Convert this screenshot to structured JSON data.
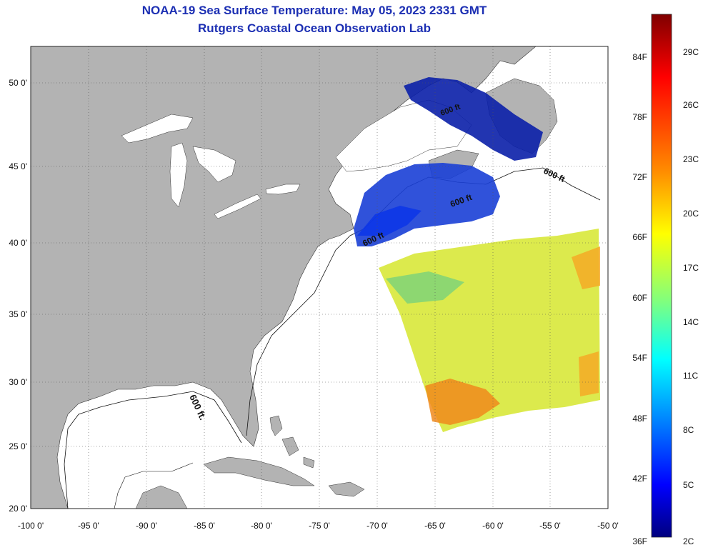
{
  "header": {
    "title": "NOAA-19 Sea Surface Temperature:  May 05, 2023 2331 GMT",
    "subtitle": "Rutgers Coastal Ocean Observation Lab"
  },
  "map": {
    "lat_labels": [
      "50 0'",
      "45 0'",
      "40 0'",
      "35 0'",
      "30 0'",
      "25 0'",
      "20 0'"
    ],
    "lat_values": [
      50,
      45,
      40,
      35,
      30,
      25,
      20
    ],
    "lon_labels": [
      "-100 0'",
      "-95 0'",
      "-90 0'",
      "-85 0'",
      "-80 0'",
      "-75 0'",
      "-70 0'",
      "-65 0'",
      "-60 0'",
      "-55 0'",
      "-50 0'"
    ],
    "lon_values": [
      -100,
      -95,
      -90,
      -85,
      -80,
      -75,
      -70,
      -65,
      -60,
      -55,
      -50
    ],
    "lat_range": [
      20,
      52.5
    ],
    "lon_range": [
      -100,
      -50
    ],
    "contour_label": "600 ft.",
    "contour_labels_upper": [
      "600 ft",
      "600 ft",
      "600 ft",
      "600 ft"
    ],
    "land_color": "#b3b3b3",
    "ocean_color": "#ffffff"
  },
  "colorbar": {
    "fahrenheit_labels": [
      "84F",
      "78F",
      "72F",
      "66F",
      "60F",
      "54F",
      "48F",
      "42F",
      "36F"
    ],
    "celsius_labels": [
      "29C",
      "26C",
      "23C",
      "20C",
      "17C",
      "14C",
      "11C",
      "8C",
      "5C",
      "2C"
    ],
    "colors": [
      "#7f0000",
      "#ff0000",
      "#ff7f00",
      "#ffff00",
      "#7fff7f",
      "#00ffff",
      "#007fff",
      "#0000ff",
      "#00007f"
    ]
  }
}
